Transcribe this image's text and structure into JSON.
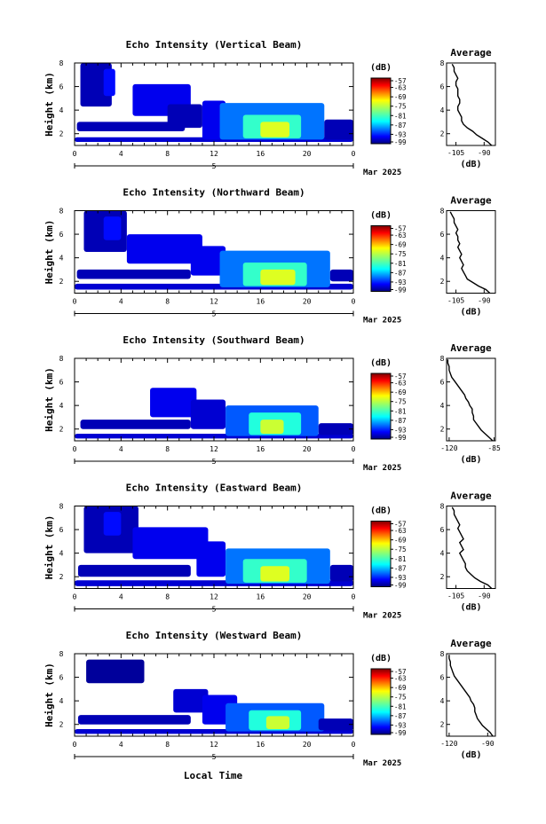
{
  "chart_data": [
    {
      "type": "heatmap",
      "title": "Echo Intensity (Vertical Beam)",
      "ylabel": "Height (km)",
      "x_ticks": [
        "0",
        "4",
        "8",
        "12",
        "16",
        "20",
        "0"
      ],
      "xlim": [
        0,
        24
      ],
      "y_ticks": [
        "2",
        "4",
        "6",
        "8"
      ],
      "ylim": [
        1,
        8
      ],
      "date_day": "5",
      "date_label": "Mar 2025",
      "colorbar": {
        "unit": "(dB)",
        "ticks": [
          "-57",
          "-63",
          "-69",
          "-75",
          "-81",
          "-87",
          "-93",
          "-99"
        ],
        "range": [
          -99,
          -57
        ]
      },
      "layers": [
        {
          "t0": 0,
          "t1": 24,
          "h0": 1.3,
          "h1": 1.7,
          "v": -96
        },
        {
          "t0": 0.2,
          "t1": 9.5,
          "h0": 2.2,
          "h1": 3.0,
          "v": -97
        },
        {
          "t0": 0.5,
          "t1": 3.2,
          "h0": 4.3,
          "h1": 8.0,
          "v": -97
        },
        {
          "t0": 2.5,
          "t1": 3.5,
          "h0": 5.2,
          "h1": 7.5,
          "v": -94
        },
        {
          "t0": 5,
          "t1": 10,
          "h0": 3.5,
          "h1": 6.2,
          "v": -95
        },
        {
          "t0": 8,
          "t1": 11,
          "h0": 2.5,
          "h1": 4.5,
          "v": -97
        },
        {
          "t0": 11,
          "t1": 13,
          "h0": 1.5,
          "h1": 4.8,
          "v": -95
        },
        {
          "t0": 12.5,
          "t1": 21.5,
          "h0": 1.5,
          "h1": 4.6,
          "v": -90
        },
        {
          "t0": 14.5,
          "t1": 19.5,
          "h0": 1.6,
          "h1": 3.6,
          "v": -82
        },
        {
          "t0": 16,
          "t1": 18.5,
          "h0": 1.7,
          "h1": 3.0,
          "v": -73
        },
        {
          "t0": 21.5,
          "t1": 24,
          "h0": 1.5,
          "h1": 3.2,
          "v": -97
        }
      ],
      "average": {
        "xlim": [
          -110,
          -84
        ],
        "x_ticks": [
          "-105",
          "-90"
        ],
        "xlabel": "(dB)",
        "title": "Average",
        "y_ticks": [
          "2",
          "4",
          "6",
          "8"
        ],
        "ylim": [
          1,
          8
        ],
        "h": [
          1.0,
          1.3,
          1.6,
          1.9,
          2.2,
          2.5,
          2.8,
          3.1,
          3.4,
          3.7,
          4.0,
          4.3,
          4.6,
          4.9,
          5.2,
          5.5,
          5.8,
          6.1,
          6.4,
          6.7,
          7.0,
          7.3,
          7.6,
          7.9
        ],
        "v": [
          -86,
          -88,
          -91,
          -94,
          -96,
          -99,
          -101,
          -102,
          -102,
          -103,
          -104,
          -104,
          -103,
          -103,
          -104,
          -104,
          -104,
          -105,
          -105,
          -104,
          -105,
          -106,
          -106,
          -107
        ]
      }
    },
    {
      "type": "heatmap",
      "title": "Echo Intensity (Northward Beam)",
      "ylabel": "Height (km)",
      "x_ticks": [
        "0",
        "4",
        "8",
        "12",
        "16",
        "20",
        "0"
      ],
      "xlim": [
        0,
        24
      ],
      "y_ticks": [
        "2",
        "4",
        "6",
        "8"
      ],
      "ylim": [
        1,
        8
      ],
      "date_day": "5",
      "date_label": "Mar 2025",
      "colorbar": {
        "unit": "(dB)",
        "ticks": [
          "-57",
          "-63",
          "-69",
          "-75",
          "-81",
          "-87",
          "-93",
          "-99"
        ],
        "range": [
          -99,
          -57
        ]
      },
      "layers": [
        {
          "t0": 0,
          "t1": 24,
          "h0": 1.3,
          "h1": 1.8,
          "v": -96
        },
        {
          "t0": 0.2,
          "t1": 10,
          "h0": 2.2,
          "h1": 3.0,
          "v": -97
        },
        {
          "t0": 0.8,
          "t1": 4.5,
          "h0": 4.5,
          "h1": 8.0,
          "v": -97
        },
        {
          "t0": 2.5,
          "t1": 4,
          "h0": 5.5,
          "h1": 7.5,
          "v": -94
        },
        {
          "t0": 4.5,
          "t1": 11,
          "h0": 3.5,
          "h1": 6.0,
          "v": -95
        },
        {
          "t0": 10,
          "t1": 13,
          "h0": 2.5,
          "h1": 5.0,
          "v": -95
        },
        {
          "t0": 12.5,
          "t1": 22,
          "h0": 1.5,
          "h1": 4.6,
          "v": -90
        },
        {
          "t0": 14.5,
          "t1": 20,
          "h0": 1.6,
          "h1": 3.6,
          "v": -82
        },
        {
          "t0": 16,
          "t1": 19,
          "h0": 1.7,
          "h1": 3.0,
          "v": -73
        },
        {
          "t0": 22,
          "t1": 24,
          "h0": 2.0,
          "h1": 3.0,
          "v": -97
        }
      ],
      "average": {
        "xlim": [
          -110,
          -84
        ],
        "x_ticks": [
          "-105",
          "-90"
        ],
        "xlabel": "(dB)",
        "title": "Average",
        "y_ticks": [
          "2",
          "4",
          "6",
          "8"
        ],
        "ylim": [
          1,
          8
        ],
        "h": [
          1.0,
          1.3,
          1.6,
          1.9,
          2.2,
          2.5,
          2.8,
          3.1,
          3.4,
          3.7,
          4.0,
          4.3,
          4.6,
          4.9,
          5.2,
          5.5,
          5.8,
          6.1,
          6.4,
          6.7,
          7.0,
          7.3,
          7.6,
          7.9
        ],
        "v": [
          -87,
          -89,
          -93,
          -96,
          -99,
          -100,
          -101,
          -102,
          -101,
          -102,
          -103,
          -102,
          -103,
          -104,
          -103,
          -104,
          -104,
          -105,
          -104,
          -105,
          -106,
          -106,
          -107,
          -108
        ]
      }
    },
    {
      "type": "heatmap",
      "title": "Echo Intensity (Southward Beam)",
      "ylabel": "Height (km)",
      "x_ticks": [
        "0",
        "4",
        "8",
        "12",
        "16",
        "20",
        "0"
      ],
      "xlim": [
        0,
        24
      ],
      "y_ticks": [
        "2",
        "4",
        "6",
        "8"
      ],
      "ylim": [
        1,
        8
      ],
      "date_day": "5",
      "date_label": "Mar 2025",
      "colorbar": {
        "unit": "(dB)",
        "ticks": [
          "-57",
          "-63",
          "-69",
          "-75",
          "-81",
          "-87",
          "-93",
          "-99"
        ],
        "range": [
          -99,
          -57
        ]
      },
      "layers": [
        {
          "t0": 0,
          "t1": 24,
          "h0": 1.2,
          "h1": 1.6,
          "v": -96
        },
        {
          "t0": 0.5,
          "t1": 10,
          "h0": 2.0,
          "h1": 2.8,
          "v": -97
        },
        {
          "t0": 6.5,
          "t1": 10.5,
          "h0": 3.0,
          "h1": 5.5,
          "v": -95
        },
        {
          "t0": 10,
          "t1": 13,
          "h0": 2.0,
          "h1": 4.5,
          "v": -96
        },
        {
          "t0": 13,
          "t1": 21,
          "h0": 1.4,
          "h1": 4.0,
          "v": -91
        },
        {
          "t0": 15,
          "t1": 19.5,
          "h0": 1.5,
          "h1": 3.4,
          "v": -83
        },
        {
          "t0": 16,
          "t1": 18,
          "h0": 1.6,
          "h1": 2.8,
          "v": -74
        },
        {
          "t0": 21,
          "t1": 24,
          "h0": 1.5,
          "h1": 2.5,
          "v": -97
        }
      ],
      "average": {
        "xlim": [
          -122,
          -84
        ],
        "x_ticks": [
          "-120",
          "-85"
        ],
        "xlabel": "(dB)",
        "title": "Average",
        "y_ticks": [
          "2",
          "4",
          "6",
          "8"
        ],
        "ylim": [
          1,
          8
        ],
        "h": [
          1.0,
          1.3,
          1.6,
          1.9,
          2.2,
          2.5,
          2.8,
          3.1,
          3.4,
          3.7,
          4.0,
          4.3,
          4.6,
          4.9,
          5.2,
          5.5,
          5.8,
          6.1,
          6.4,
          6.7,
          7.0,
          7.3,
          7.6,
          7.9
        ],
        "v": [
          -86,
          -89,
          -92,
          -95,
          -97,
          -99,
          -101,
          -101,
          -102,
          -102,
          -104,
          -105,
          -107,
          -108,
          -110,
          -112,
          -114,
          -116,
          -118,
          -119,
          -120,
          -120,
          -121,
          -121
        ]
      }
    },
    {
      "type": "heatmap",
      "title": "Echo Intensity (Eastward Beam)",
      "ylabel": "Height (km)",
      "x_ticks": [
        "0",
        "4",
        "8",
        "12",
        "16",
        "20",
        "0"
      ],
      "xlim": [
        0,
        24
      ],
      "y_ticks": [
        "2",
        "4",
        "6",
        "8"
      ],
      "ylim": [
        1,
        8
      ],
      "date_day": "5",
      "date_label": "Mar 2025",
      "colorbar": {
        "unit": "(dB)",
        "ticks": [
          "-57",
          "-63",
          "-69",
          "-75",
          "-81",
          "-87",
          "-93",
          "-99"
        ],
        "range": [
          -99,
          -57
        ]
      },
      "layers": [
        {
          "t0": 0,
          "t1": 24,
          "h0": 1.2,
          "h1": 1.7,
          "v": -96
        },
        {
          "t0": 0.3,
          "t1": 10,
          "h0": 2.0,
          "h1": 3.0,
          "v": -97
        },
        {
          "t0": 0.8,
          "t1": 5.5,
          "h0": 4.0,
          "h1": 8.0,
          "v": -97
        },
        {
          "t0": 2.5,
          "t1": 4,
          "h0": 5.5,
          "h1": 7.5,
          "v": -94
        },
        {
          "t0": 5,
          "t1": 11.5,
          "h0": 3.5,
          "h1": 6.2,
          "v": -95
        },
        {
          "t0": 10.5,
          "t1": 13,
          "h0": 2.0,
          "h1": 5.0,
          "v": -95
        },
        {
          "t0": 13,
          "t1": 22,
          "h0": 1.4,
          "h1": 4.4,
          "v": -90
        },
        {
          "t0": 14.5,
          "t1": 20,
          "h0": 1.5,
          "h1": 3.5,
          "v": -82
        },
        {
          "t0": 16,
          "t1": 18.5,
          "h0": 1.6,
          "h1": 2.9,
          "v": -73
        },
        {
          "t0": 22,
          "t1": 24,
          "h0": 1.6,
          "h1": 3.0,
          "v": -97
        }
      ],
      "average": {
        "xlim": [
          -110,
          -84
        ],
        "x_ticks": [
          "-105",
          "-90"
        ],
        "xlabel": "(dB)",
        "title": "Average",
        "y_ticks": [
          "2",
          "4",
          "6",
          "8"
        ],
        "ylim": [
          1,
          8
        ],
        "h": [
          1.0,
          1.3,
          1.6,
          1.9,
          2.2,
          2.5,
          2.8,
          3.1,
          3.4,
          3.7,
          4.0,
          4.3,
          4.6,
          4.9,
          5.2,
          5.5,
          5.8,
          6.1,
          6.4,
          6.7,
          7.0,
          7.3,
          7.6,
          7.9
        ],
        "v": [
          -86,
          -88,
          -92,
          -95,
          -97,
          -99,
          -100,
          -100,
          -101,
          -102,
          -103,
          -101,
          -102,
          -103,
          -101,
          -102,
          -103,
          -104,
          -103,
          -104,
          -105,
          -106,
          -106,
          -107
        ]
      }
    },
    {
      "type": "heatmap",
      "title": "Echo Intensity (Westward Beam)",
      "ylabel": "Height (km)",
      "x_ticks": [
        "0",
        "4",
        "8",
        "12",
        "16",
        "20",
        "0"
      ],
      "xlim": [
        0,
        24
      ],
      "y_ticks": [
        "2",
        "4",
        "6",
        "8"
      ],
      "ylim": [
        1,
        8
      ],
      "date_day": "5",
      "date_label": "Mar 2025",
      "colorbar": {
        "unit": "(dB)",
        "ticks": [
          "-57",
          "-63",
          "-69",
          "-75",
          "-81",
          "-87",
          "-93",
          "-99"
        ],
        "range": [
          -99,
          -57
        ]
      },
      "layers": [
        {
          "t0": 0,
          "t1": 24,
          "h0": 1.2,
          "h1": 1.6,
          "v": -96
        },
        {
          "t0": 0.3,
          "t1": 10,
          "h0": 2.0,
          "h1": 2.8,
          "v": -97
        },
        {
          "t0": 1,
          "t1": 6,
          "h0": 5.5,
          "h1": 7.5,
          "v": -98
        },
        {
          "t0": 8.5,
          "t1": 11.5,
          "h0": 3.0,
          "h1": 5.0,
          "v": -96
        },
        {
          "t0": 11,
          "t1": 14,
          "h0": 2.0,
          "h1": 4.5,
          "v": -95
        },
        {
          "t0": 13,
          "t1": 21.5,
          "h0": 1.4,
          "h1": 3.8,
          "v": -91
        },
        {
          "t0": 15,
          "t1": 19.5,
          "h0": 1.5,
          "h1": 3.2,
          "v": -83
        },
        {
          "t0": 16.5,
          "t1": 18.5,
          "h0": 1.6,
          "h1": 2.7,
          "v": -74
        },
        {
          "t0": 21,
          "t1": 24,
          "h0": 1.5,
          "h1": 2.5,
          "v": -97
        }
      ],
      "average": {
        "xlim": [
          -122,
          -84
        ],
        "x_ticks": [
          "-120",
          "-90"
        ],
        "xlabel": "(dB)",
        "title": "Average",
        "y_ticks": [
          "2",
          "4",
          "6",
          "8"
        ],
        "ylim": [
          1,
          8
        ],
        "h": [
          1.0,
          1.3,
          1.6,
          1.9,
          2.2,
          2.5,
          2.8,
          3.1,
          3.4,
          3.7,
          4.0,
          4.3,
          4.6,
          4.9,
          5.2,
          5.5,
          5.8,
          6.1,
          6.4,
          6.7,
          7.0,
          7.3,
          7.6,
          7.9
        ],
        "v": [
          -86,
          -88,
          -91,
          -94,
          -96,
          -98,
          -99,
          -100,
          -100,
          -101,
          -103,
          -104,
          -106,
          -108,
          -110,
          -112,
          -114,
          -116,
          -117,
          -118,
          -119,
          -119,
          -120,
          -120
        ]
      }
    }
  ],
  "x_axis_label": "Local Time",
  "colors": {
    "no_data": "#ffffff",
    "axis": "#000000"
  }
}
